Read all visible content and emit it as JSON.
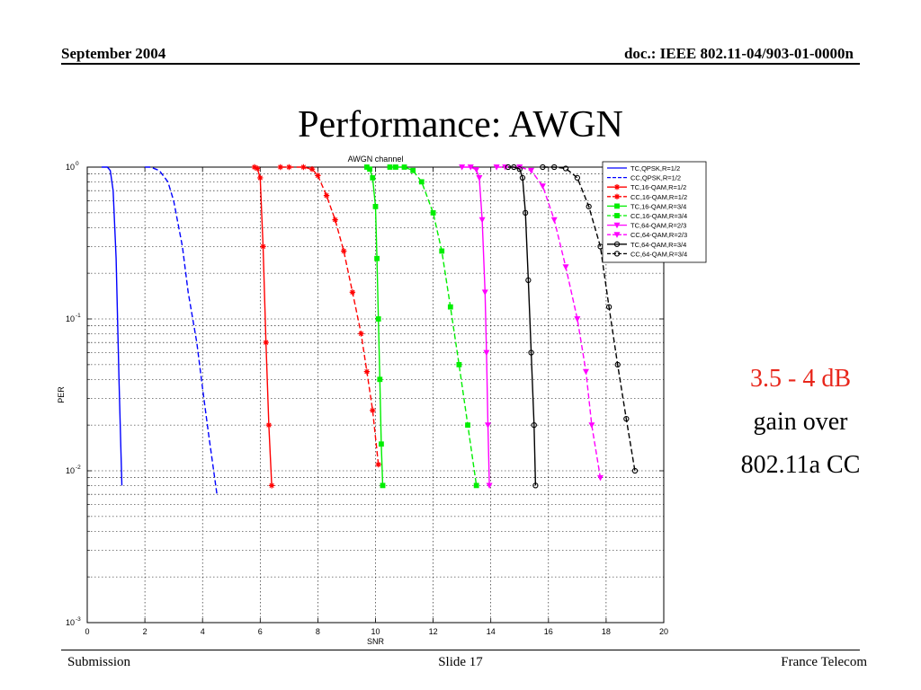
{
  "header": {
    "date": "September 2004",
    "doc": "doc.: IEEE 802.11-04/903-01-0000n"
  },
  "slide_title": "Performance: AWGN",
  "callout": {
    "line1": "3.5 - 4 dB",
    "line2": "gain over",
    "line3": "802.11a CC"
  },
  "footer": {
    "left": "Submission",
    "center": "Slide 17",
    "right": "France Telecom"
  },
  "chart_data": {
    "type": "line",
    "title": "AWGN channel",
    "xlabel": "SNR",
    "ylabel": "PER",
    "xlim": [
      0,
      20
    ],
    "ylim": [
      0.001,
      1
    ],
    "y_scale": "log",
    "grid": true,
    "legend_position": "top-right",
    "x_ticks": [
      "0",
      "2",
      "4",
      "6",
      "8",
      "10",
      "12",
      "14",
      "16",
      "18",
      "20"
    ],
    "y_ticks": [
      {
        "value": 1,
        "base": "10",
        "exp": "0"
      },
      {
        "value": 0.1,
        "base": "10",
        "exp": "-1"
      },
      {
        "value": 0.01,
        "base": "10",
        "exp": "-2"
      },
      {
        "value": 0.001,
        "base": "10",
        "exp": "-3"
      }
    ],
    "series": [
      {
        "name": "TC,QPSK,R=1/2",
        "color": "#0000ff",
        "dash": false,
        "marker": "none",
        "x": [
          0.5,
          0.7,
          0.8,
          0.9,
          1.0,
          1.1,
          1.2
        ],
        "y": [
          1,
          1,
          0.95,
          0.7,
          0.25,
          0.04,
          0.008
        ]
      },
      {
        "name": "CC,QPSK,R=1/2",
        "color": "#0000ff",
        "dash": true,
        "marker": "none",
        "x": [
          2.0,
          2.2,
          2.5,
          2.8,
          3.0,
          3.3,
          3.5,
          3.8,
          4.0,
          4.2,
          4.5
        ],
        "y": [
          1,
          1,
          0.95,
          0.8,
          0.6,
          0.3,
          0.15,
          0.07,
          0.035,
          0.018,
          0.007
        ]
      },
      {
        "name": "TC,16-QAM,R=1/2",
        "color": "#ff0000",
        "dash": false,
        "marker": "star",
        "x": [
          5.8,
          5.9,
          6.0,
          6.1,
          6.2,
          6.3,
          6.4
        ],
        "y": [
          1,
          0.98,
          0.85,
          0.3,
          0.07,
          0.02,
          0.008
        ]
      },
      {
        "name": "CC,16-QAM,R=1/2",
        "color": "#ff0000",
        "dash": true,
        "marker": "star",
        "x": [
          6.7,
          7.0,
          7.5,
          7.8,
          8.0,
          8.3,
          8.6,
          8.9,
          9.2,
          9.5,
          9.7,
          9.9,
          10.1
        ],
        "y": [
          1,
          1,
          1,
          0.97,
          0.88,
          0.65,
          0.45,
          0.28,
          0.15,
          0.08,
          0.045,
          0.025,
          0.011
        ]
      },
      {
        "name": "TC,16-QAM,R=3/4",
        "color": "#00ee00",
        "dash": false,
        "marker": "square",
        "x": [
          9.7,
          9.8,
          9.9,
          10.0,
          10.05,
          10.1,
          10.15,
          10.2,
          10.25
        ],
        "y": [
          1,
          0.97,
          0.85,
          0.55,
          0.25,
          0.1,
          0.04,
          0.015,
          0.008
        ]
      },
      {
        "name": "CC,16-QAM,R=3/4",
        "color": "#00ee00",
        "dash": true,
        "marker": "square",
        "x": [
          10.5,
          10.7,
          11.0,
          11.3,
          11.6,
          12.0,
          12.3,
          12.6,
          12.9,
          13.2,
          13.5
        ],
        "y": [
          1,
          1,
          1,
          0.95,
          0.8,
          0.5,
          0.28,
          0.12,
          0.05,
          0.02,
          0.008
        ]
      },
      {
        "name": "TC,64-QAM,R=2/3",
        "color": "#ff00ff",
        "dash": false,
        "marker": "triangle-down",
        "x": [
          13.0,
          13.3,
          13.5,
          13.6,
          13.7,
          13.8,
          13.85,
          13.9,
          13.95
        ],
        "y": [
          1,
          1,
          0.96,
          0.85,
          0.45,
          0.15,
          0.06,
          0.02,
          0.008
        ]
      },
      {
        "name": "CC,64-QAM,R=2/3",
        "color": "#ff00ff",
        "dash": true,
        "marker": "triangle-down",
        "x": [
          14.2,
          14.5,
          15.0,
          15.4,
          15.8,
          16.2,
          16.6,
          17.0,
          17.3,
          17.5,
          17.8
        ],
        "y": [
          1,
          1,
          1,
          0.95,
          0.75,
          0.45,
          0.22,
          0.1,
          0.045,
          0.02,
          0.009
        ]
      },
      {
        "name": "TC,64-QAM,R=3/4",
        "color": "#000000",
        "dash": false,
        "marker": "circle",
        "x": [
          14.6,
          14.8,
          15.0,
          15.1,
          15.2,
          15.3,
          15.4,
          15.5,
          15.55
        ],
        "y": [
          1,
          1,
          0.97,
          0.85,
          0.5,
          0.18,
          0.06,
          0.02,
          0.008
        ]
      },
      {
        "name": "CC,64-QAM,R=3/4",
        "color": "#000000",
        "dash": true,
        "marker": "circle",
        "x": [
          15.8,
          16.2,
          16.6,
          17.0,
          17.4,
          17.8,
          18.1,
          18.4,
          18.7,
          19.0
        ],
        "y": [
          1,
          1,
          0.98,
          0.85,
          0.55,
          0.3,
          0.12,
          0.05,
          0.022,
          0.01
        ]
      }
    ]
  }
}
